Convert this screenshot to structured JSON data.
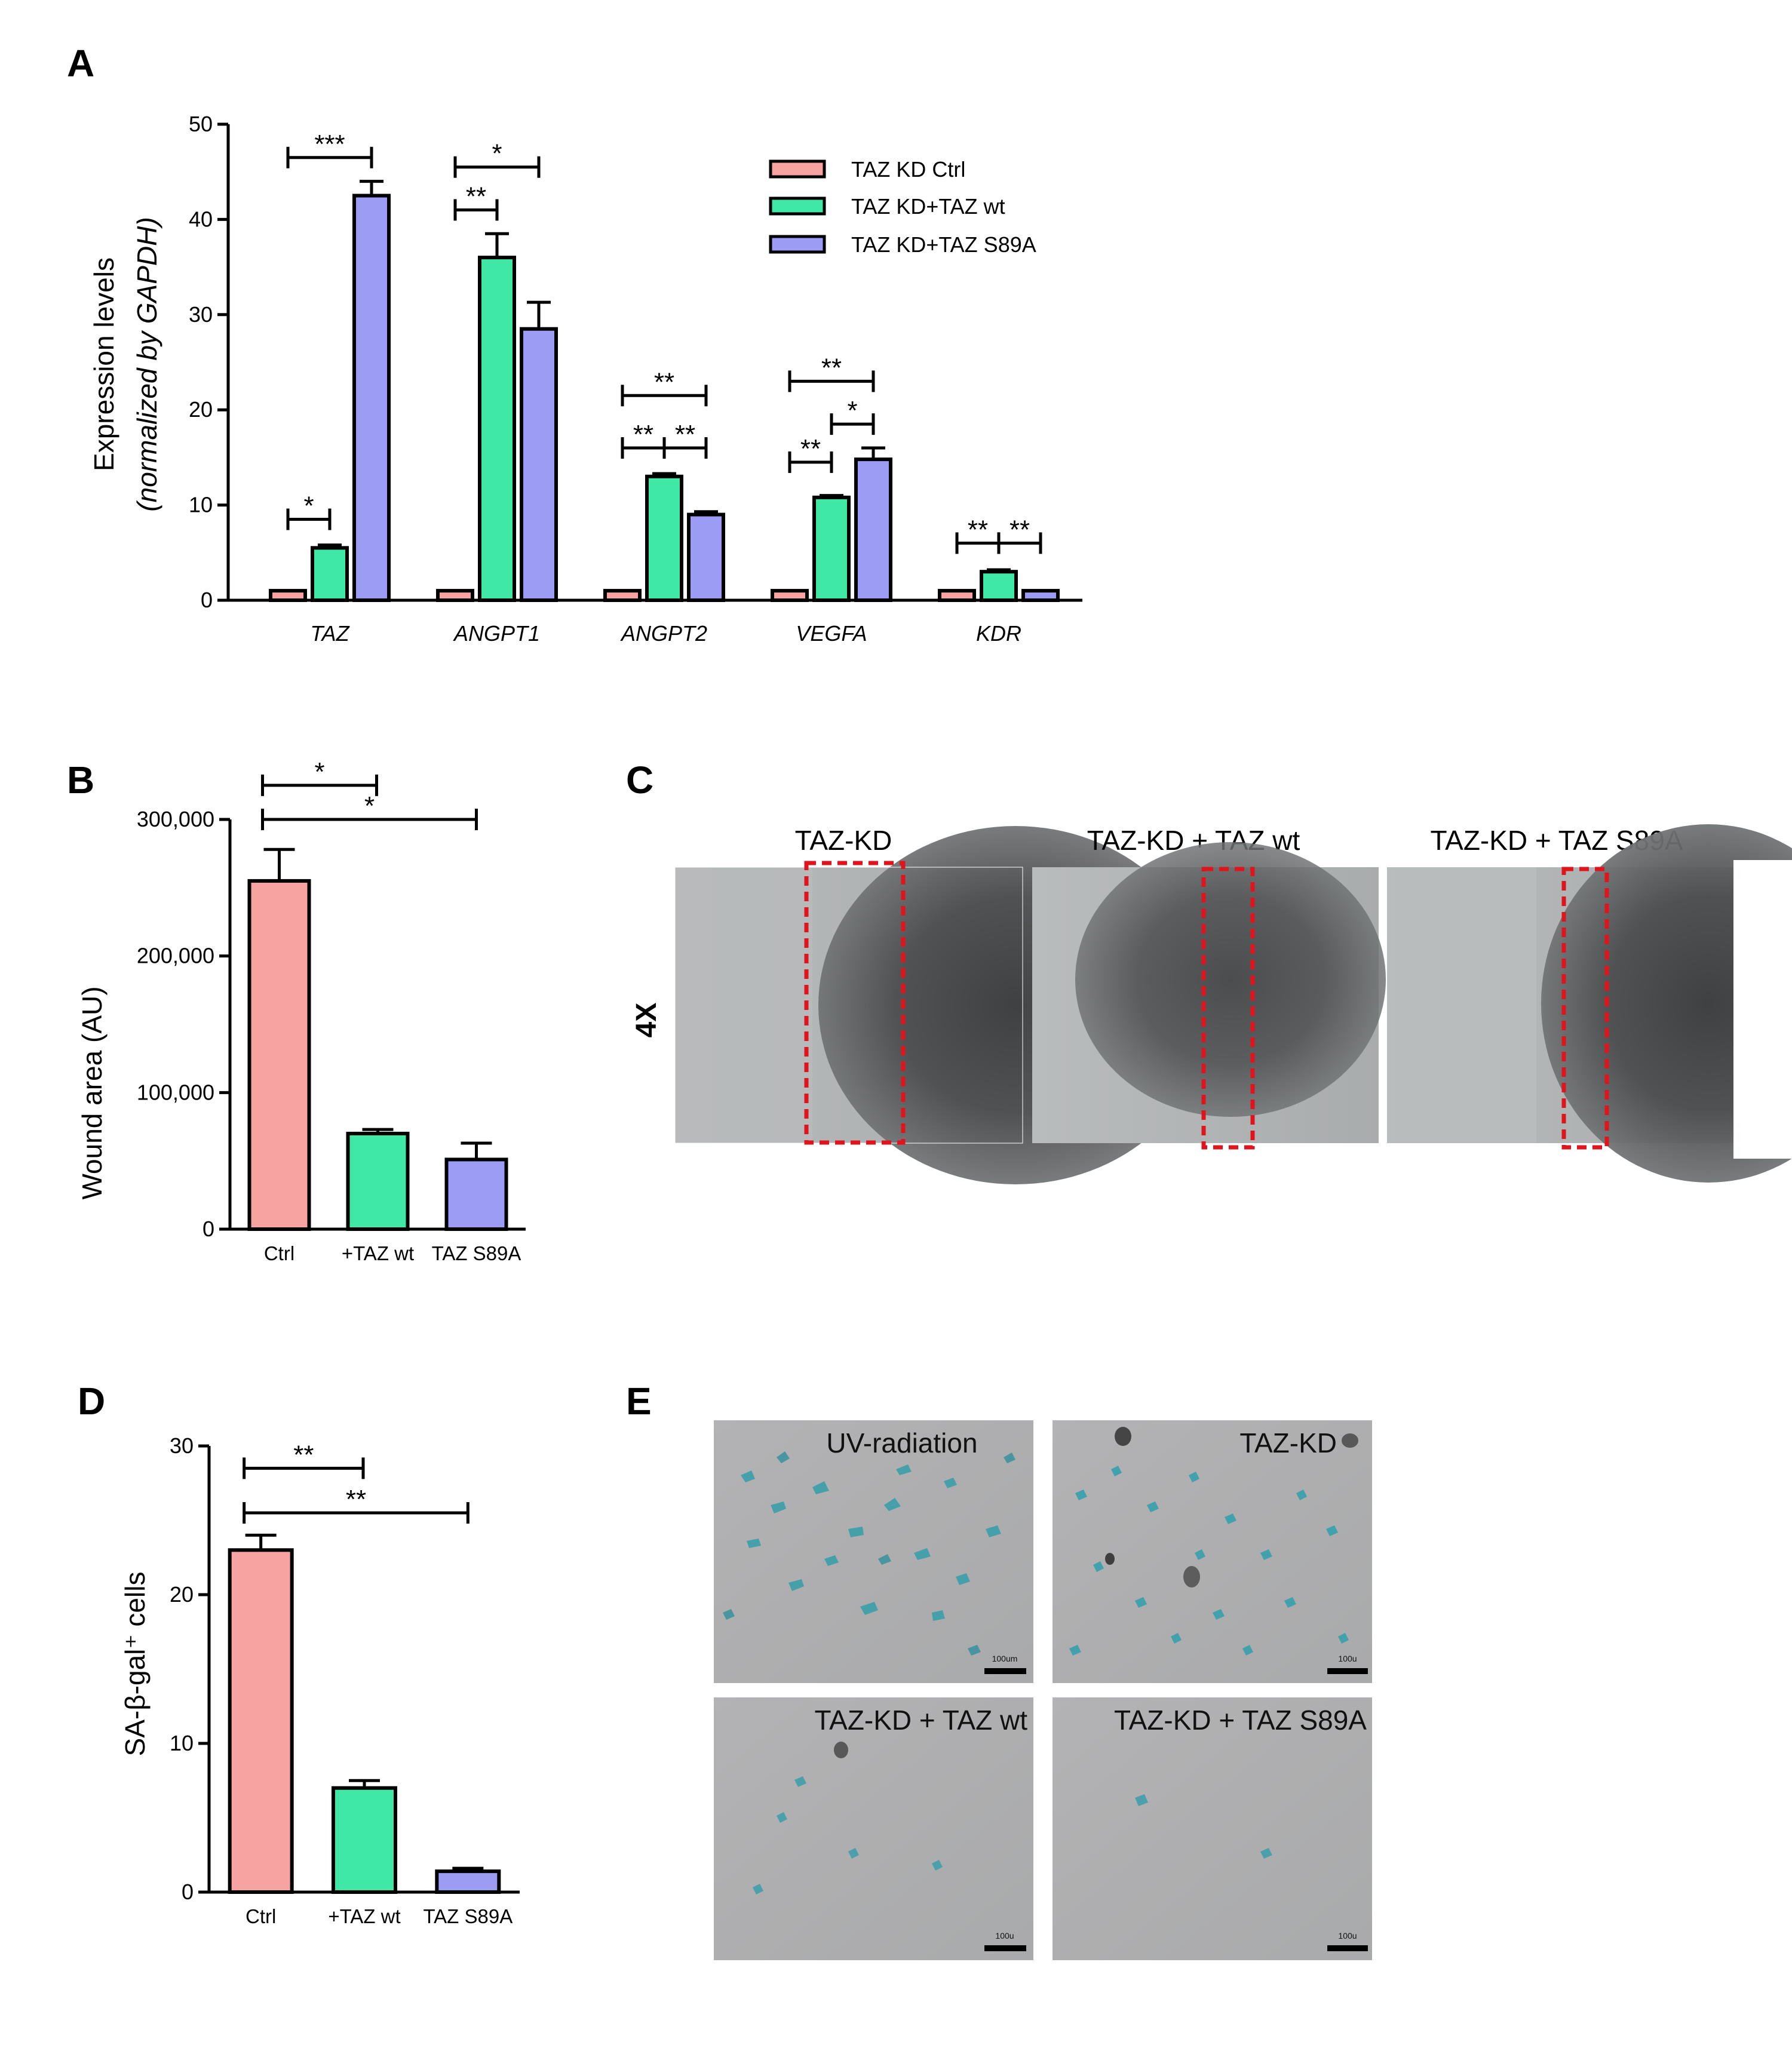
{
  "panels": {
    "a": "A",
    "b": "B",
    "c": "C",
    "d": "D",
    "e": "E"
  },
  "colors": {
    "ctrl": "#f7a3a2",
    "wt": "#3fe8a4",
    "s89a": "#9c9cf4"
  },
  "chart_data": [
    {
      "id": "A",
      "type": "bar",
      "title": "",
      "ylabel_line1": "Expression levels",
      "ylabel_line2": "(normalized by GAPDH)",
      "xlabel": "",
      "ylim": [
        0,
        50
      ],
      "yticks": [
        "0",
        "10",
        "20",
        "30",
        "40",
        "50"
      ],
      "categories": [
        "TAZ",
        "ANGPT1",
        "ANGPT2",
        "VEGFA",
        "KDR"
      ],
      "series": [
        {
          "name": "TAZ KD Ctrl",
          "values": [
            1,
            1,
            1,
            1,
            1
          ],
          "errors": [
            0,
            0,
            0,
            0,
            0
          ]
        },
        {
          "name": "TAZ KD+TAZ wt",
          "values": [
            5.5,
            36,
            13,
            10.8,
            3
          ],
          "errors": [
            0.3,
            2.5,
            0.3,
            0.2,
            0.2
          ]
        },
        {
          "name": "TAZ KD+TAZ S89A",
          "values": [
            42.5,
            28.5,
            9,
            14.8,
            1
          ],
          "errors": [
            1.5,
            2.8,
            0.3,
            1.2,
            0
          ]
        }
      ],
      "legend_position": "top-right",
      "significance": [
        {
          "category": 0,
          "from": 1,
          "to": 2,
          "level": 8.5,
          "text": "*"
        },
        {
          "category": 0,
          "from": 1,
          "to": 3,
          "level": 46.5,
          "text": "***"
        },
        {
          "category": 1,
          "from": 1,
          "to": 2,
          "level": 41,
          "text": "**"
        },
        {
          "category": 1,
          "from": 1,
          "to": 3,
          "level": 45.5,
          "text": "*"
        },
        {
          "category": 2,
          "from": 1,
          "to": 2,
          "level": 16,
          "text": "**"
        },
        {
          "category": 2,
          "from": 2,
          "to": 3,
          "level": 16,
          "text": "**"
        },
        {
          "category": 2,
          "from": 1,
          "to": 3,
          "level": 21.5,
          "text": "**"
        },
        {
          "category": 3,
          "from": 1,
          "to": 2,
          "level": 14.5,
          "text": "**"
        },
        {
          "category": 3,
          "from": 2,
          "to": 3,
          "level": 18.5,
          "text": "*"
        },
        {
          "category": 3,
          "from": 1,
          "to": 3,
          "level": 23,
          "text": "**"
        },
        {
          "category": 4,
          "from": 1,
          "to": 2,
          "level": 6,
          "text": "**"
        },
        {
          "category": 4,
          "from": 2,
          "to": 3,
          "level": 6,
          "text": "**"
        }
      ]
    },
    {
      "id": "B",
      "type": "bar",
      "title": "",
      "ylabel": "Wound area (AU)",
      "xlabel": "",
      "ylim": [
        0,
        300000
      ],
      "yticks": [
        "0",
        "100,000",
        "200,000",
        "300,000"
      ],
      "categories": [
        "Ctrl",
        "+TAZ wt",
        "TAZ S89A"
      ],
      "values": [
        255000,
        70000,
        51000
      ],
      "errors": [
        23000,
        3000,
        12000
      ],
      "significance": [
        {
          "from": 0,
          "to": 1,
          "level": 325000,
          "text": "*"
        },
        {
          "from": 0,
          "to": 2,
          "level": 300000,
          "text": "*"
        }
      ]
    },
    {
      "id": "D",
      "type": "bar",
      "title": "",
      "ylabel": "SA-β-gal⁺ cells",
      "xlabel": "",
      "ylim": [
        0,
        30
      ],
      "yticks": [
        "0",
        "10",
        "20",
        "30"
      ],
      "categories": [
        "Ctrl",
        "+TAZ wt",
        "TAZ S89A"
      ],
      "values": [
        23,
        7,
        1.4
      ],
      "errors": [
        1.0,
        0.5,
        0.2
      ],
      "significance": [
        {
          "from": 0,
          "to": 1,
          "level": 28.5,
          "text": "**"
        },
        {
          "from": 0,
          "to": 2,
          "level": 25.5,
          "text": "**"
        }
      ]
    }
  ],
  "panel_c": {
    "magnification": "4X",
    "images": [
      {
        "label": "TAZ-KD"
      },
      {
        "label": "TAZ-KD  + TAZ  wt"
      },
      {
        "label": "TAZ-KD  + TAZ  S89A"
      }
    ]
  },
  "panel_e": {
    "images": [
      {
        "label": "UV-radiation",
        "scale": "100um"
      },
      {
        "label": "TAZ-KD",
        "scale": "100u"
      },
      {
        "label": "TAZ-KD  + TAZ  wt",
        "scale": "100u"
      },
      {
        "label": "TAZ-KD  + TAZ  S89A",
        "scale": "100u"
      }
    ]
  }
}
